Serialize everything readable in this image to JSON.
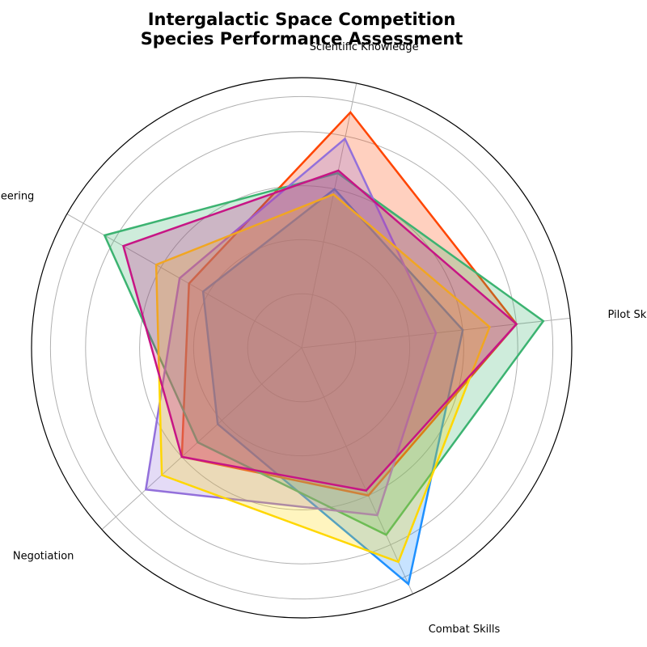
{
  "chart_data": {
    "type": "radar",
    "title_lines": [
      "Intergalactic Space Competition",
      "Species Performance Assessment"
    ],
    "axes": [
      "Pilot Skills",
      "Combat Skills",
      "Negotiation",
      "Engineering",
      "Scientific Knowledge"
    ],
    "rmax": 10,
    "grid_levels": [
      2,
      4,
      6,
      8,
      9.3
    ],
    "grid": true,
    "legend": "none",
    "series": [
      {
        "color": "#1e90ff",
        "values": [
          6,
          9.6,
          4.2,
          4.2,
          6
        ]
      },
      {
        "color": "#ff4500",
        "values": [
          8,
          6,
          6,
          4.8,
          8.9
        ]
      },
      {
        "color": "#3cb371",
        "values": [
          9,
          7.6,
          5.2,
          8.4,
          6.6
        ]
      },
      {
        "color": "#9370db",
        "values": [
          5,
          6.8,
          7.8,
          5.2,
          7.9
        ]
      },
      {
        "color": "#ffd700",
        "values": [
          7,
          8.7,
          7,
          6.2,
          5.8
        ]
      },
      {
        "color": "#c71585",
        "values": [
          8,
          5.8,
          6,
          7.6,
          6.7
        ]
      }
    ]
  }
}
